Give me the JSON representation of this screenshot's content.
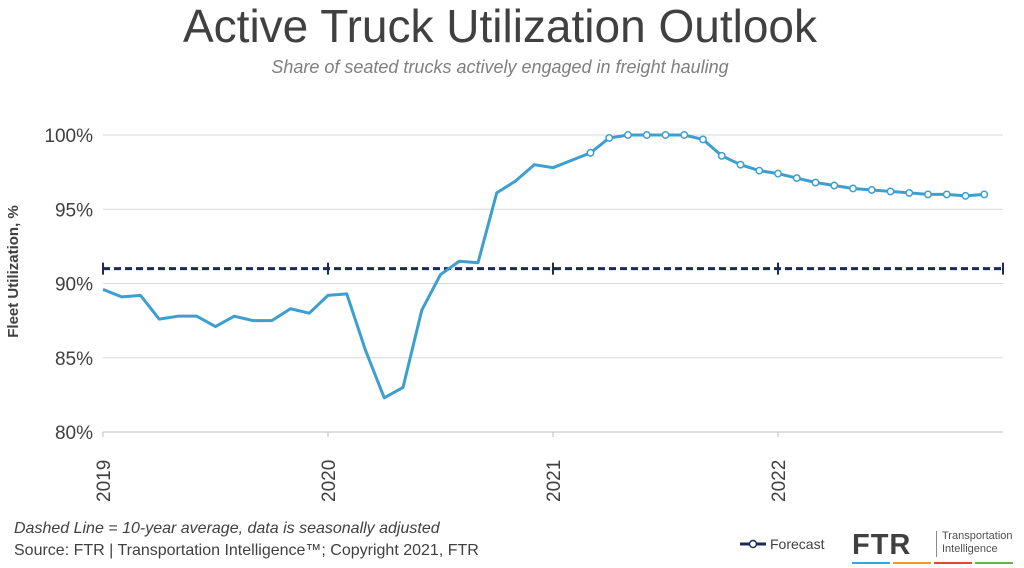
{
  "header": {
    "title": "Active Truck Utilization Outlook",
    "subtitle": "Share of seated trucks actively engaged in freight hauling"
  },
  "footer": {
    "note": "Dashed Line = 10-year average, data is seasonally adjusted",
    "source": "Source: FTR | Transportation Intelligence™; Copyright 2021, FTR"
  },
  "legend": {
    "forecast_label": "Forecast"
  },
  "logo": {
    "mark": "FTR",
    "text_line1": "Transportation",
    "text_line2": "Intelligence",
    "stripe_colors": [
      "#3ba3d8",
      "#f29a2e",
      "#e2453c",
      "#6ab04c"
    ]
  },
  "chart_data": {
    "type": "line",
    "title": "Active Truck Utilization Outlook",
    "subtitle": "Share of seated trucks actively engaged in freight hauling",
    "ylabel": "Fleet Utilization, %",
    "xlabel": "",
    "ylim": [
      80,
      100
    ],
    "yticks": [
      80,
      85,
      90,
      95,
      100
    ],
    "ytick_labels": [
      "80%",
      "85%",
      "90%",
      "95%",
      "100%"
    ],
    "x_start": "2019-01",
    "xtick_labels": [
      "2019",
      "2020",
      "2021",
      "2022"
    ],
    "grid": "horizontal",
    "colors": {
      "series": "#3d9ed0",
      "average": "#1a2b5a"
    },
    "series": [
      {
        "values": [
          89.6,
          89.1,
          89.2,
          87.6,
          87.8,
          87.8,
          87.1,
          87.8,
          87.5,
          87.5,
          88.3,
          88.0,
          89.2,
          89.3,
          85.5,
          82.3,
          83.0,
          88.2,
          90.6,
          91.5,
          91.4,
          96.1,
          96.9,
          98.0,
          97.8,
          98.3,
          98.8,
          99.8,
          100.0,
          100.0,
          100.0,
          100.0,
          99.7,
          98.6,
          98.0,
          97.6,
          97.4,
          97.1,
          96.8,
          96.6,
          96.4,
          96.3,
          96.2,
          96.1,
          96.0,
          96.0,
          95.9,
          96.0
        ],
        "forecast_start_index": 26
      },
      {
        "name": "10-year average",
        "values": [
          91.0
        ]
      }
    ]
  }
}
